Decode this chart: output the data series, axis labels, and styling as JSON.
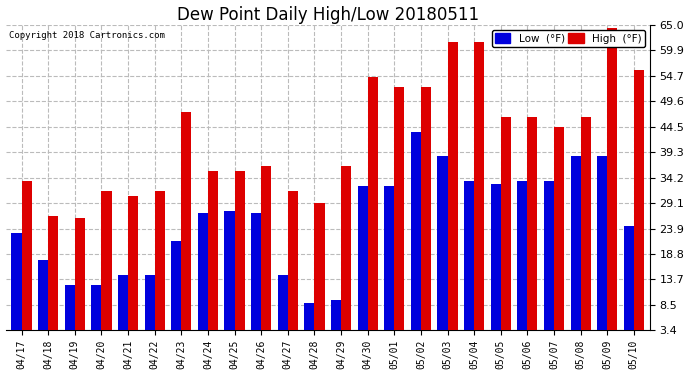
{
  "title": "Dew Point Daily High/Low 20180511",
  "copyright": "Copyright 2018 Cartronics.com",
  "background_color": "#ffffff",
  "plot_bg_color": "#ffffff",
  "grid_color": "#bbbbbb",
  "dates": [
    "04/17",
    "04/18",
    "04/19",
    "04/20",
    "04/21",
    "04/22",
    "04/23",
    "04/24",
    "04/25",
    "04/26",
    "04/27",
    "04/28",
    "04/29",
    "04/30",
    "05/01",
    "05/02",
    "05/03",
    "05/04",
    "05/05",
    "05/06",
    "05/07",
    "05/08",
    "05/09",
    "05/10"
  ],
  "low": [
    23.0,
    17.5,
    12.5,
    12.5,
    14.5,
    14.5,
    21.5,
    27.0,
    27.5,
    27.0,
    14.5,
    9.0,
    9.5,
    32.5,
    32.5,
    43.5,
    38.5,
    33.5,
    33.0,
    33.5,
    33.5,
    38.5,
    38.5,
    24.5
  ],
  "high": [
    33.5,
    26.5,
    26.0,
    31.5,
    30.5,
    31.5,
    47.5,
    35.5,
    35.5,
    36.5,
    31.5,
    29.0,
    36.5,
    54.5,
    52.5,
    52.5,
    61.5,
    61.5,
    46.5,
    46.5,
    44.5,
    46.5,
    64.5,
    56.0
  ],
  "low_color": "#0000dd",
  "high_color": "#dd0000",
  "ylim_min": 3.4,
  "ylim_max": 65.0,
  "yticks": [
    3.4,
    8.5,
    13.7,
    18.8,
    23.9,
    29.1,
    34.2,
    39.3,
    44.5,
    49.6,
    54.7,
    59.9,
    65.0
  ],
  "bar_width": 0.38,
  "figwidth": 6.9,
  "figheight": 3.75,
  "dpi": 100
}
